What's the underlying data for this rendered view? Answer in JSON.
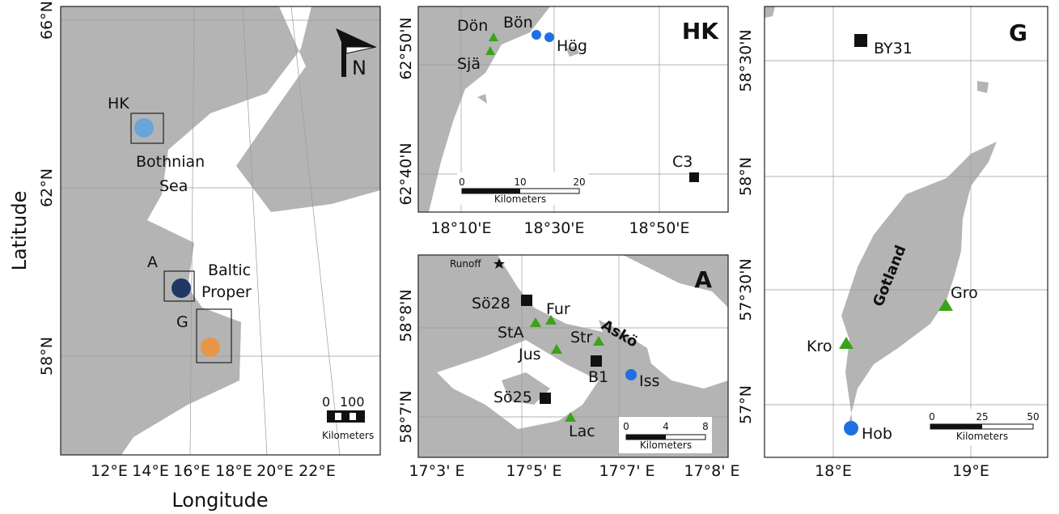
{
  "overview": {
    "y_axis_label": "Latitude",
    "x_axis_label": "Longitude",
    "y_ticks": [
      "66°N",
      "62°N",
      "58°N"
    ],
    "x_ticks": [
      "12°E",
      "14°E",
      "16°E",
      "18°E",
      "20°E",
      "22°E"
    ],
    "areas": [
      "HK",
      "A",
      "G"
    ],
    "sea_labels": [
      [
        "Bothnian",
        "Sea"
      ],
      [
        "Baltic",
        "Proper"
      ]
    ],
    "north": "N",
    "scale": {
      "ticks": [
        0,
        100
      ],
      "unit": "Kilometers"
    }
  },
  "hk": {
    "title": "HK",
    "y_ticks": [
      "62°50'N",
      "62°40'N"
    ],
    "x_ticks": [
      "18°10'E",
      "18°30'E",
      "18°50'E"
    ],
    "sites": [
      "Dön",
      "Bön",
      "Hög",
      "Sjä",
      "C3"
    ],
    "scale": {
      "ticks": [
        0,
        10,
        20
      ],
      "unit": "Kilometers"
    }
  },
  "a": {
    "title": "A",
    "y_ticks": [
      "58°8'N",
      "58°7'N"
    ],
    "x_ticks": [
      "17°3' E",
      "17°5' E",
      "17°7' E",
      "17°8' E"
    ],
    "sites": [
      "Runoff",
      "Sö28",
      "Fur",
      "StA",
      "Str",
      "Jus",
      "B1",
      "Iss",
      "Sö25",
      "Lac"
    ],
    "island": "Askö",
    "scale": {
      "ticks": [
        0,
        4,
        8
      ],
      "unit": "Kilometers"
    }
  },
  "g": {
    "title": "G",
    "y_ticks": [
      "58°30'N",
      "58°N",
      "57°30'N",
      "57°N"
    ],
    "x_ticks": [
      "18°E",
      "19°E"
    ],
    "sites": [
      "BY31",
      "Gro",
      "Kro",
      "Hob"
    ],
    "island": "Gotland",
    "scale": {
      "ticks": [
        0,
        25,
        50
      ],
      "unit": "Kilometers"
    }
  }
}
